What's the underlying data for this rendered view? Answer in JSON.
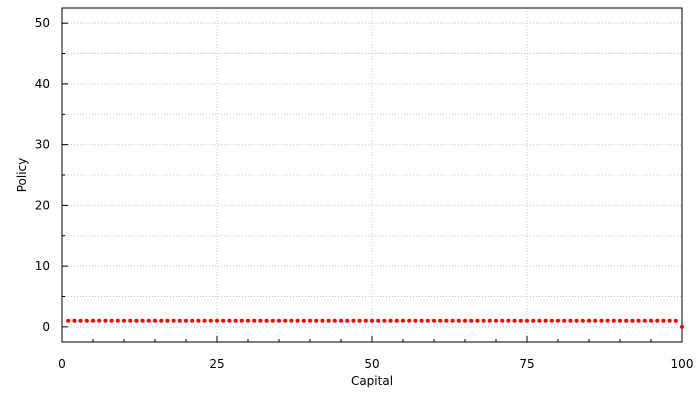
{
  "chart_data": {
    "type": "scatter",
    "xlabel": "Capital",
    "ylabel": "Policy",
    "xlim": [
      0,
      100
    ],
    "ylim": [
      -2.5,
      52.5
    ],
    "xticks": [
      0,
      25,
      50,
      75,
      100
    ],
    "yticks": [
      0,
      10,
      20,
      30,
      40,
      50
    ],
    "grid": true,
    "marker_color": "#ff0000",
    "series": [
      {
        "x": [
          1,
          2,
          3,
          4,
          5,
          6,
          7,
          8,
          9,
          10,
          11,
          12,
          13,
          14,
          15,
          16,
          17,
          18,
          19,
          20,
          21,
          22,
          23,
          24,
          25,
          26,
          27,
          28,
          29,
          30,
          31,
          32,
          33,
          34,
          35,
          36,
          37,
          38,
          39,
          40,
          41,
          42,
          43,
          44,
          45,
          46,
          47,
          48,
          49,
          50,
          51,
          52,
          53,
          54,
          55,
          56,
          57,
          58,
          59,
          60,
          61,
          62,
          63,
          64,
          65,
          66,
          67,
          68,
          69,
          70,
          71,
          72,
          73,
          74,
          75,
          76,
          77,
          78,
          79,
          80,
          81,
          82,
          83,
          84,
          85,
          86,
          87,
          88,
          89,
          90,
          91,
          92,
          93,
          94,
          95,
          96,
          97,
          98,
          99,
          100
        ],
        "y": [
          1,
          1,
          1,
          1,
          1,
          1,
          1,
          1,
          1,
          1,
          1,
          1,
          1,
          1,
          1,
          1,
          1,
          1,
          1,
          1,
          1,
          1,
          1,
          1,
          1,
          1,
          1,
          1,
          1,
          1,
          1,
          1,
          1,
          1,
          1,
          1,
          1,
          1,
          1,
          1,
          1,
          1,
          1,
          1,
          1,
          1,
          1,
          1,
          1,
          1,
          1,
          1,
          1,
          1,
          1,
          1,
          1,
          1,
          1,
          1,
          1,
          1,
          1,
          1,
          1,
          1,
          1,
          1,
          1,
          1,
          1,
          1,
          1,
          1,
          1,
          1,
          1,
          1,
          1,
          1,
          1,
          1,
          1,
          1,
          1,
          1,
          1,
          1,
          1,
          1,
          1,
          1,
          1,
          1,
          1,
          1,
          1,
          1,
          1,
          0
        ]
      }
    ]
  }
}
